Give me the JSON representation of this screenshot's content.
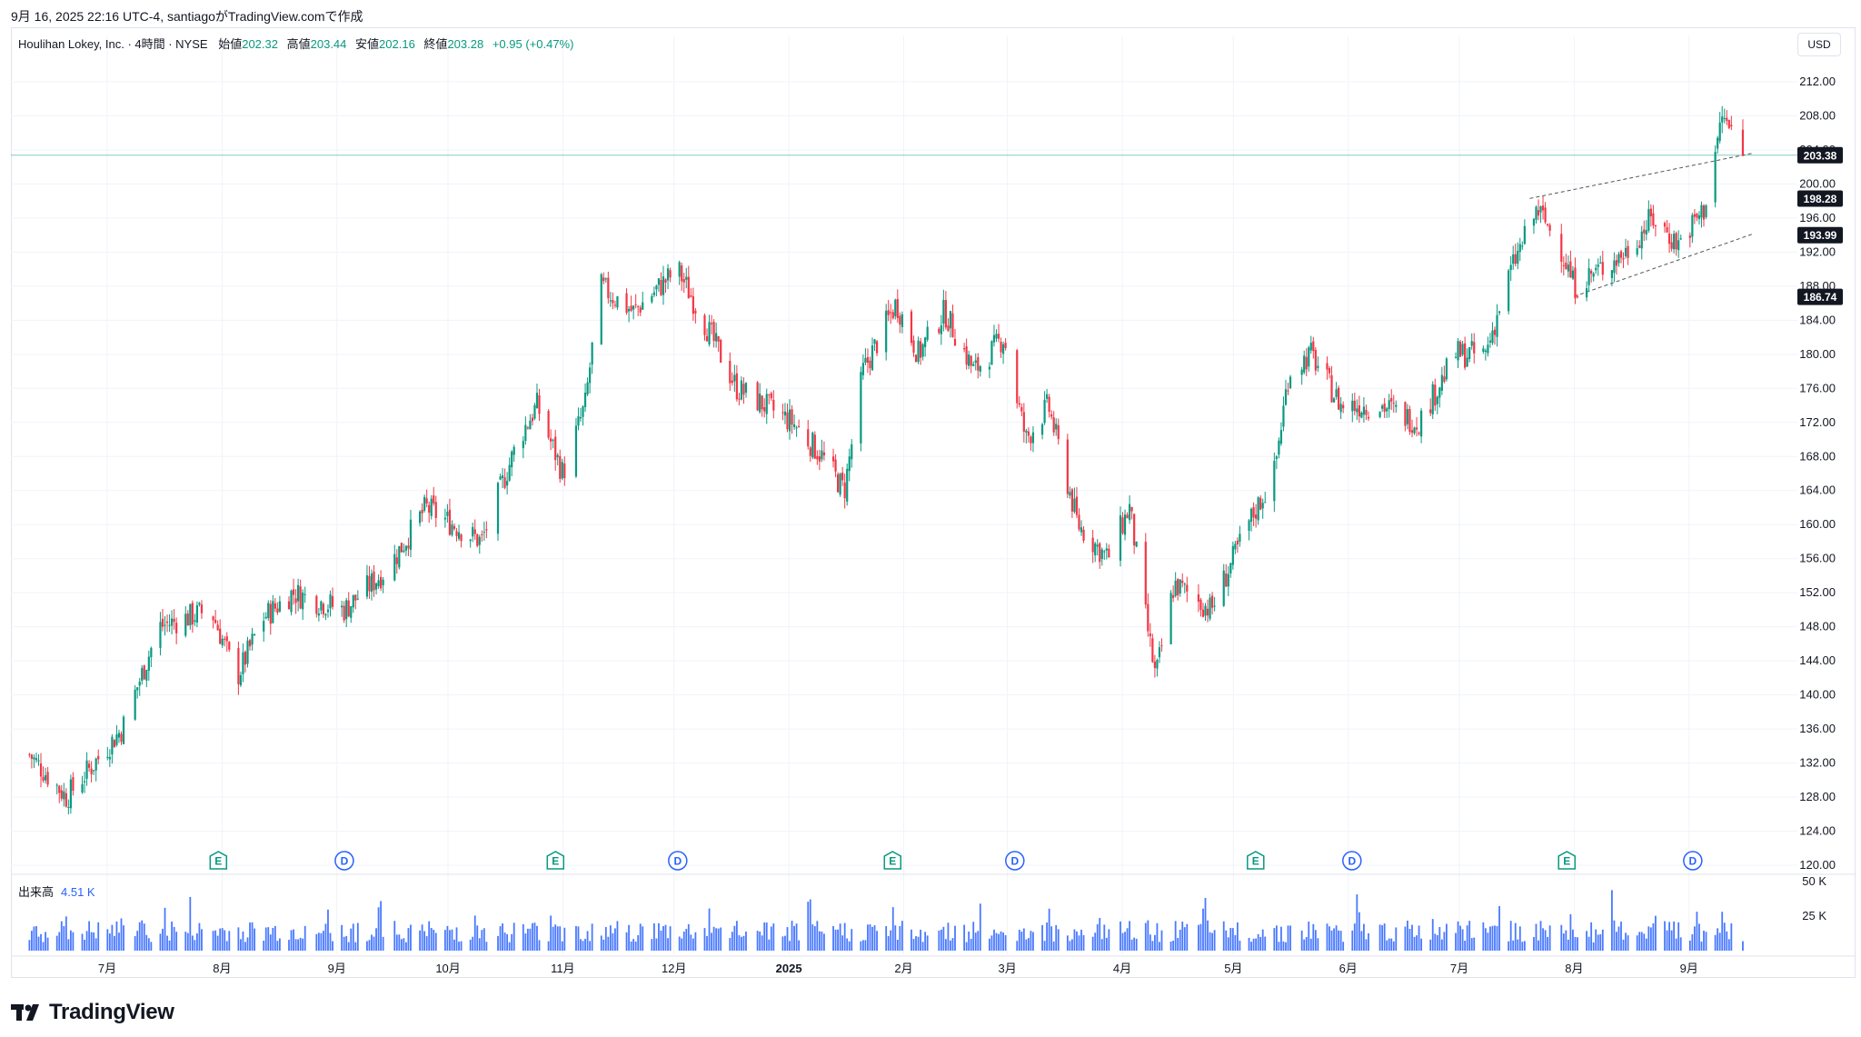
{
  "header": {
    "attribution": "9月 16, 2025 22:16 UTC-4, santiagoがTradingView.comで作成"
  },
  "legend": {
    "symbol": "Houlihan Lokey, Inc. · 4時間 · NYSE",
    "open_label": "始値",
    "open": "202.32",
    "high_label": "高値",
    "high": "203.44",
    "low_label": "安値",
    "low": "202.16",
    "close_label": "終値",
    "close": "203.28",
    "change": "+0.95 (+0.47%)"
  },
  "currency": "USD",
  "volume_legend": {
    "label": "出来高",
    "value": "4.51 K"
  },
  "footer": {
    "brand": "TradingView",
    "logo_icon": "tradingview-logo-icon"
  },
  "colors": {
    "up": "#089981",
    "down": "#f23645",
    "volume": "#2962ff",
    "grid": "#f0f3fa",
    "event_earnings": "#089981",
    "event_dividend": "#2962ff"
  },
  "chart_data": {
    "type": "candlestick",
    "price_axis": {
      "min": 120,
      "max": 212,
      "ticks": [
        "212.00",
        "208.00",
        "204.00",
        "200.00",
        "196.00",
        "192.00",
        "188.00",
        "184.00",
        "180.00",
        "176.00",
        "172.00",
        "168.00",
        "164.00",
        "160.00",
        "156.00",
        "152.00",
        "148.00",
        "144.00",
        "140.00",
        "136.00",
        "132.00",
        "128.00",
        "124.00",
        "120.00"
      ]
    },
    "price_labels": [
      {
        "value": "203.38",
        "price": 203.38
      },
      {
        "value": "198.28",
        "price": 198.28
      },
      {
        "value": "193.99",
        "price": 193.99
      },
      {
        "value": "186.74",
        "price": 186.74
      }
    ],
    "volume_axis": {
      "min": 0,
      "max": 50000,
      "ticks": [
        "50 K",
        "25 K"
      ]
    },
    "time_axis": [
      "7月",
      "8月",
      "9月",
      "10月",
      "11月",
      "12月",
      "2025",
      "2月",
      "3月",
      "4月",
      "5月",
      "6月",
      "7月",
      "8月",
      "9月"
    ],
    "close_anchors": [
      {
        "date": "2024-06-10",
        "close": 133
      },
      {
        "date": "2024-06-20",
        "close": 128
      },
      {
        "date": "2024-07-05",
        "close": 136
      },
      {
        "date": "2024-07-15",
        "close": 148
      },
      {
        "date": "2024-07-29",
        "close": 150
      },
      {
        "date": "2024-08-05",
        "close": 142
      },
      {
        "date": "2024-08-12",
        "close": 149
      },
      {
        "date": "2024-08-20",
        "close": 152
      },
      {
        "date": "2024-09-03",
        "close": 150
      },
      {
        "date": "2024-09-15",
        "close": 155
      },
      {
        "date": "2024-09-25",
        "close": 162
      },
      {
        "date": "2024-10-10",
        "close": 158
      },
      {
        "date": "2024-10-20",
        "close": 170
      },
      {
        "date": "2024-10-25",
        "close": 174
      },
      {
        "date": "2024-11-01",
        "close": 166
      },
      {
        "date": "2024-11-07",
        "close": 174
      },
      {
        "date": "2024-11-11",
        "close": 188
      },
      {
        "date": "2024-11-20",
        "close": 185
      },
      {
        "date": "2024-12-02",
        "close": 190
      },
      {
        "date": "2024-12-10",
        "close": 183
      },
      {
        "date": "2024-12-18",
        "close": 176
      },
      {
        "date": "2025-01-02",
        "close": 172
      },
      {
        "date": "2025-01-10",
        "close": 168
      },
      {
        "date": "2025-01-16",
        "close": 164
      },
      {
        "date": "2025-01-21",
        "close": 178
      },
      {
        "date": "2025-01-30",
        "close": 186
      },
      {
        "date": "2025-02-05",
        "close": 180
      },
      {
        "date": "2025-02-12",
        "close": 185
      },
      {
        "date": "2025-02-20",
        "close": 178
      },
      {
        "date": "2025-02-28",
        "close": 182
      },
      {
        "date": "2025-03-06",
        "close": 170
      },
      {
        "date": "2025-03-12",
        "close": 174
      },
      {
        "date": "2025-03-20",
        "close": 160
      },
      {
        "date": "2025-03-28",
        "close": 156
      },
      {
        "date": "2025-04-03",
        "close": 162
      },
      {
        "date": "2025-04-07",
        "close": 150
      },
      {
        "date": "2025-04-10",
        "close": 142
      },
      {
        "date": "2025-04-15",
        "close": 153
      },
      {
        "date": "2025-04-25",
        "close": 150
      },
      {
        "date": "2025-05-05",
        "close": 160
      },
      {
        "date": "2025-05-12",
        "close": 166
      },
      {
        "date": "2025-05-16",
        "close": 178
      },
      {
        "date": "2025-05-22",
        "close": 180
      },
      {
        "date": "2025-05-30",
        "close": 174
      },
      {
        "date": "2025-06-10",
        "close": 174
      },
      {
        "date": "2025-06-20",
        "close": 172
      },
      {
        "date": "2025-06-30",
        "close": 180
      },
      {
        "date": "2025-07-08",
        "close": 180
      },
      {
        "date": "2025-07-15",
        "close": 190
      },
      {
        "date": "2025-07-22",
        "close": 197
      },
      {
        "date": "2025-07-28",
        "close": 193
      },
      {
        "date": "2025-08-01",
        "close": 188
      },
      {
        "date": "2025-08-08",
        "close": 190
      },
      {
        "date": "2025-08-15",
        "close": 192
      },
      {
        "date": "2025-08-22",
        "close": 196
      },
      {
        "date": "2025-08-29",
        "close": 193
      },
      {
        "date": "2025-09-05",
        "close": 197
      },
      {
        "date": "2025-09-10",
        "close": 208
      },
      {
        "date": "2025-09-16",
        "close": 203.28
      }
    ],
    "trend_lines": [
      {
        "from": {
          "date": "2025-07-20",
          "price": 198.3
        },
        "to": {
          "date": "2025-09-18",
          "price": 203.6
        }
      },
      {
        "from": {
          "date": "2025-08-01",
          "price": 186.8
        },
        "to": {
          "date": "2025-09-18",
          "price": 194.1
        }
      }
    ],
    "events": [
      {
        "type": "E",
        "date": "2024-07-31"
      },
      {
        "type": "D",
        "date": "2024-09-03"
      },
      {
        "type": "E",
        "date": "2024-10-30"
      },
      {
        "type": "D",
        "date": "2024-12-02"
      },
      {
        "type": "E",
        "date": "2025-01-29"
      },
      {
        "type": "D",
        "date": "2025-03-03"
      },
      {
        "type": "E",
        "date": "2025-05-07"
      },
      {
        "type": "D",
        "date": "2025-06-02"
      },
      {
        "type": "E",
        "date": "2025-07-30"
      },
      {
        "type": "D",
        "date": "2025-09-02"
      }
    ],
    "last_close": 203.28
  }
}
